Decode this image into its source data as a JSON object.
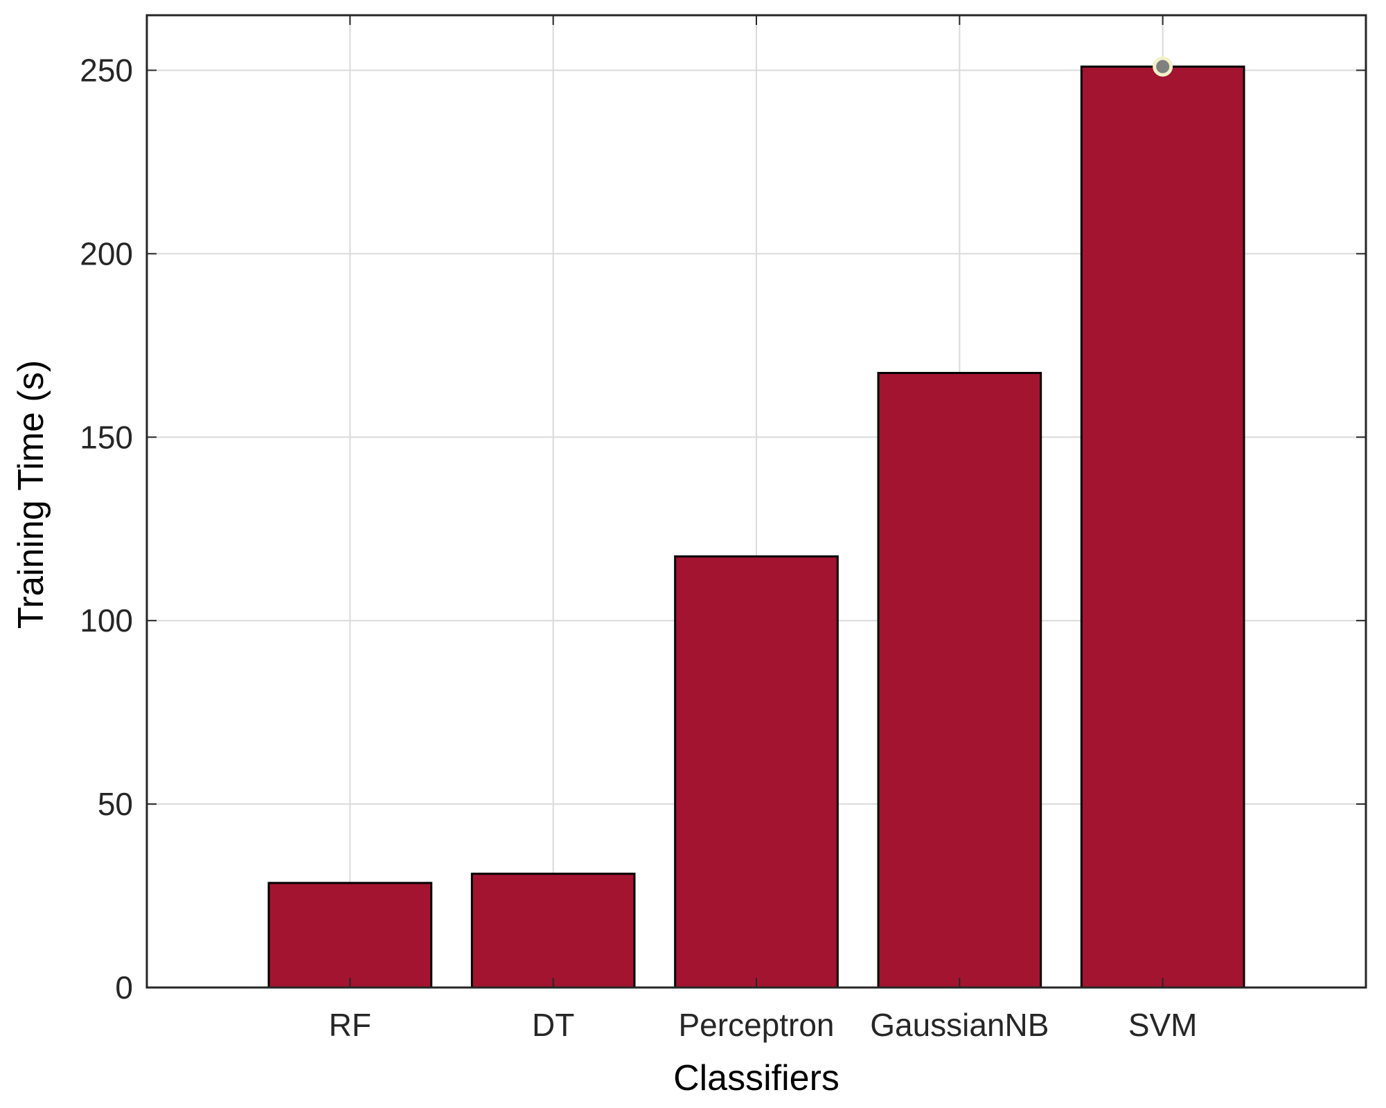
{
  "chart_data": {
    "type": "bar",
    "title": "",
    "xlabel": "Classifiers",
    "ylabel": "Training Time (s)",
    "categories": [
      "RF",
      "DT",
      "Perceptron",
      "GaussianNB",
      "SVM"
    ],
    "values": [
      28.5,
      31,
      117.5,
      167.5,
      251
    ],
    "ylim": [
      0,
      265
    ],
    "yticks": [
      0,
      50,
      100,
      150,
      200,
      250
    ],
    "grid": true,
    "bar_color": "#A31431",
    "bar_edge_color": "#000000",
    "grid_color": "#DADADA",
    "marker": {
      "category": "SVM",
      "value": 251,
      "fill": "#808080",
      "edge": "#F3F0C8"
    }
  }
}
